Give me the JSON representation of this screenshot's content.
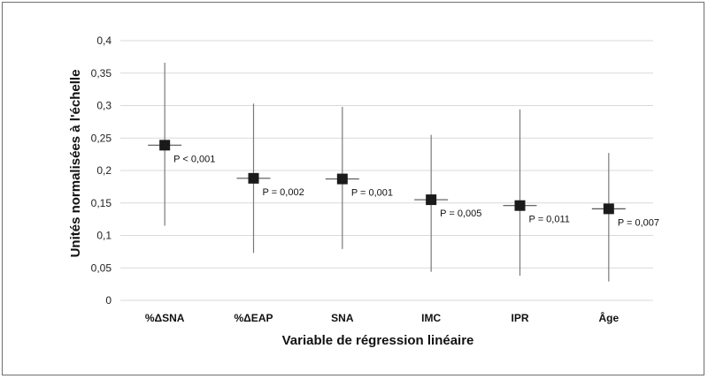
{
  "chart_data": {
    "type": "scatter",
    "title": "",
    "xlabel": "Variable de régression linéaire",
    "ylabel": "Unités normalisées à l'échelle",
    "ylim": [
      0,
      0.4
    ],
    "yticks": [
      "0",
      "0,05",
      "0,1",
      "0,15",
      "0,2",
      "0,25",
      "0,3",
      "0,35",
      "0,4"
    ],
    "grid": true,
    "legend": "none",
    "categories": [
      "%ΔSNA",
      "%ΔEAP",
      "SNA",
      "IMC",
      "IPR",
      "Âge"
    ],
    "series": [
      {
        "values": [
          0.239,
          0.188,
          0.187,
          0.155,
          0.146,
          0.141
        ],
        "lower": [
          0.115,
          0.073,
          0.079,
          0.044,
          0.038,
          0.029
        ],
        "upper": [
          0.366,
          0.303,
          0.298,
          0.255,
          0.294,
          0.227
        ],
        "annotations": [
          "P < 0,001",
          "P = 0,002",
          "P = 0,001",
          "P = 0,005",
          "P = 0,011",
          "P = 0,007"
        ]
      }
    ],
    "colors": {
      "marker": "#1a1a1a",
      "whisker": "#7a7a7a",
      "grid": "#d9d9d9"
    }
  }
}
